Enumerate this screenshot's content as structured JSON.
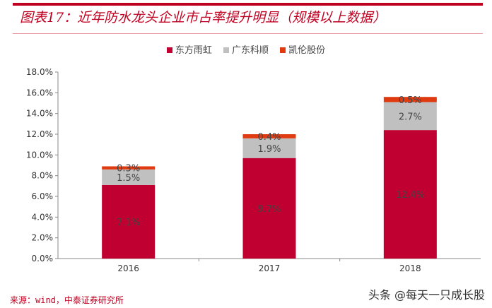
{
  "title": "图表17：近年防水龙头企业市占率提升明显（规模以上数据）",
  "source": "来源：wind，中泰证券研究所",
  "watermark": "头条 @每天一只成长股",
  "chart_data": {
    "type": "bar",
    "stacked": true,
    "categories": [
      "2016",
      "2017",
      "2018"
    ],
    "series": [
      {
        "name": "东方雨虹",
        "values": [
          7.1,
          9.7,
          12.4
        ],
        "color": "#c00030",
        "labels": [
          "7.1%",
          "9.7%",
          "12.4%"
        ]
      },
      {
        "name": "广东科顺",
        "values": [
          1.5,
          1.9,
          2.7
        ],
        "color": "#c0c0c0",
        "labels": [
          "1.5%",
          "1.9%",
          "2.7%"
        ]
      },
      {
        "name": "凯伦股份",
        "values": [
          0.3,
          0.4,
          0.5
        ],
        "color": "#e03a10",
        "labels": [
          "0.3%",
          "0.4%",
          "0.5%"
        ]
      }
    ],
    "ylim": [
      0,
      18
    ],
    "yticks": [
      "0.0%",
      "2.0%",
      "4.0%",
      "6.0%",
      "8.0%",
      "10.0%",
      "12.0%",
      "14.0%",
      "16.0%",
      "18.0%"
    ],
    "grid": false,
    "legend": "top"
  }
}
